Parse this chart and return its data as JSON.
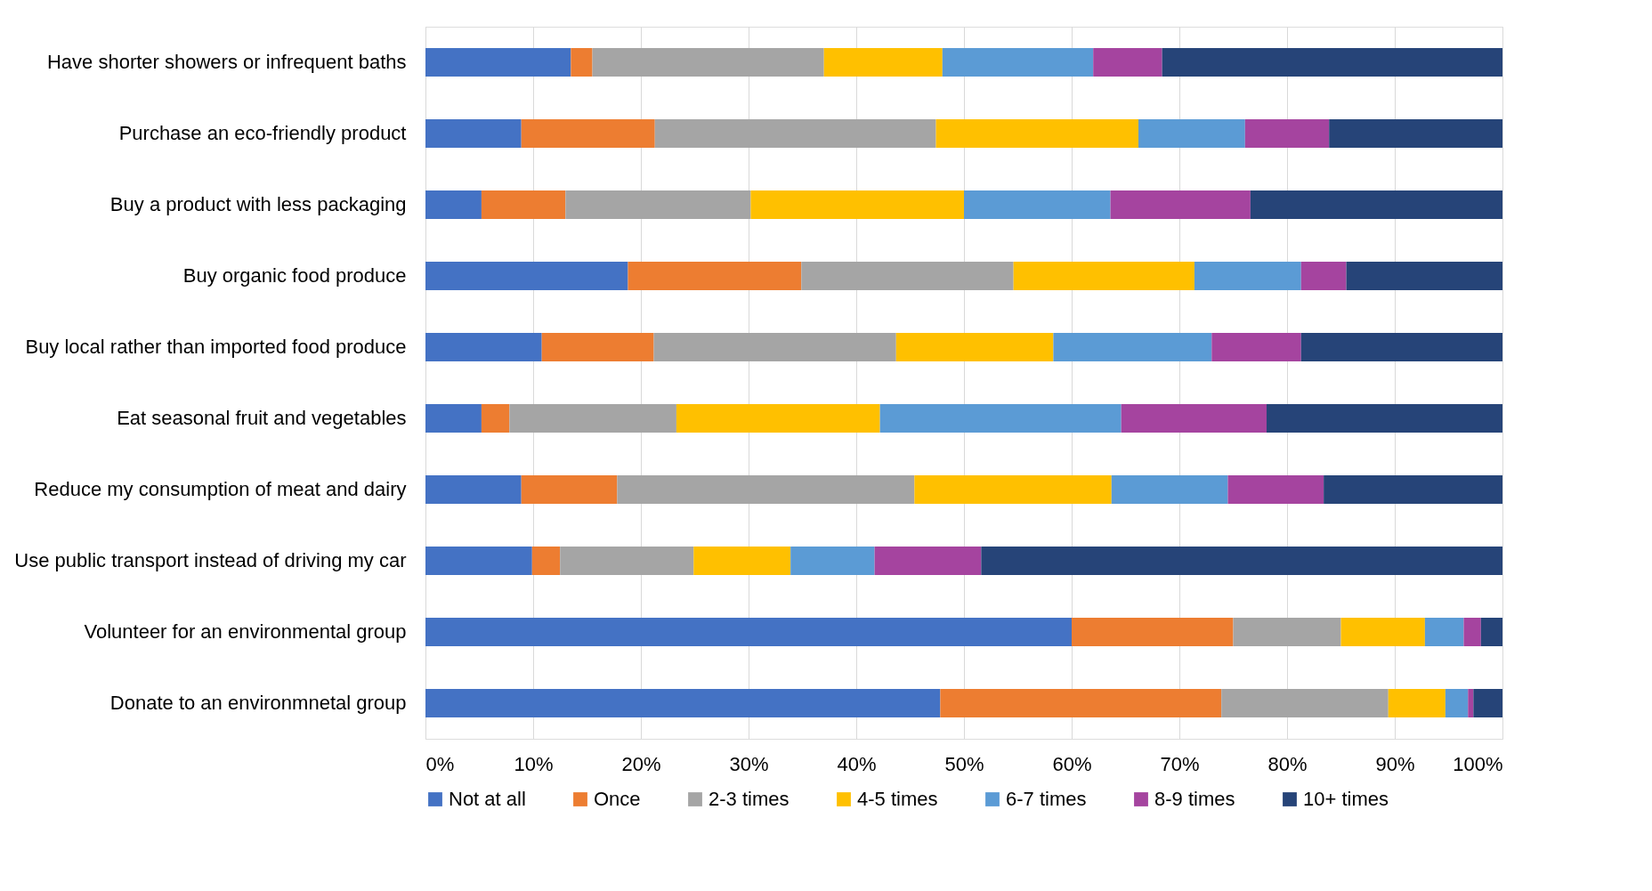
{
  "chart_data": {
    "type": "bar",
    "orientation": "horizontal",
    "stacked": true,
    "categories": [
      "Have shorter showers or infrequent baths",
      "Purchase an eco-friendly product",
      "Buy a product with less packaging",
      "Buy organic food produce",
      "Buy local rather than imported food produce",
      "Eat seasonal fruit and vegetables",
      "Reduce my consumption of meat and dairy",
      "Use public transport instead of driving my car",
      "Volunteer for an environmental group",
      "Donate to an environmnetal group"
    ],
    "series": [
      {
        "name": "Not at all",
        "color": "#4472c4",
        "values": [
          13.5,
          8.9,
          5.2,
          18.8,
          10.8,
          5.2,
          8.9,
          9.9,
          60,
          47.8
        ]
      },
      {
        "name": "Once",
        "color": "#ed7d31",
        "values": [
          2,
          12.4,
          7.8,
          16.1,
          10.4,
          2.6,
          8.9,
          2.6,
          15,
          26.1
        ]
      },
      {
        "name": "2-3 times",
        "color": "#a5a5a5",
        "values": [
          21.5,
          26.1,
          17.2,
          19.7,
          22.5,
          15.5,
          27.6,
          12.4,
          10,
          15.5
        ]
      },
      {
        "name": "4-5 times",
        "color": "#ffc000",
        "values": [
          11,
          18.8,
          19.8,
          16.8,
          14.6,
          18.9,
          18.3,
          9,
          7.8,
          5.3
        ]
      },
      {
        "name": "6-7 times",
        "color": "#5b9bd5",
        "values": [
          14,
          9.9,
          13.6,
          9.9,
          14.7,
          22.4,
          10.8,
          7.8,
          3.6,
          2.1
        ]
      },
      {
        "name": "8-9 times",
        "color": "#a5449f",
        "values": [
          6.4,
          7.8,
          13,
          4.2,
          8.3,
          13.5,
          8.9,
          9.9,
          1.6,
          0.5
        ]
      },
      {
        "name": "10+ times",
        "color": "#264478",
        "values": [
          31.6,
          16.1,
          23.4,
          14.5,
          18.7,
          21.9,
          16.6,
          48.4,
          2,
          2.7
        ]
      }
    ],
    "xlim": [
      0,
      100
    ],
    "xticks": [
      {
        "value": 0,
        "label": "0%"
      },
      {
        "value": 10,
        "label": "10%"
      },
      {
        "value": 20,
        "label": "20%"
      },
      {
        "value": 30,
        "label": "30%"
      },
      {
        "value": 40,
        "label": "40%"
      },
      {
        "value": 50,
        "label": "50%"
      },
      {
        "value": 60,
        "label": "60%"
      },
      {
        "value": 70,
        "label": "70%"
      },
      {
        "value": 80,
        "label": "80%"
      },
      {
        "value": 90,
        "label": "90%"
      },
      {
        "value": 100,
        "label": "100%"
      }
    ],
    "grid": "x",
    "legend": "bottom"
  }
}
